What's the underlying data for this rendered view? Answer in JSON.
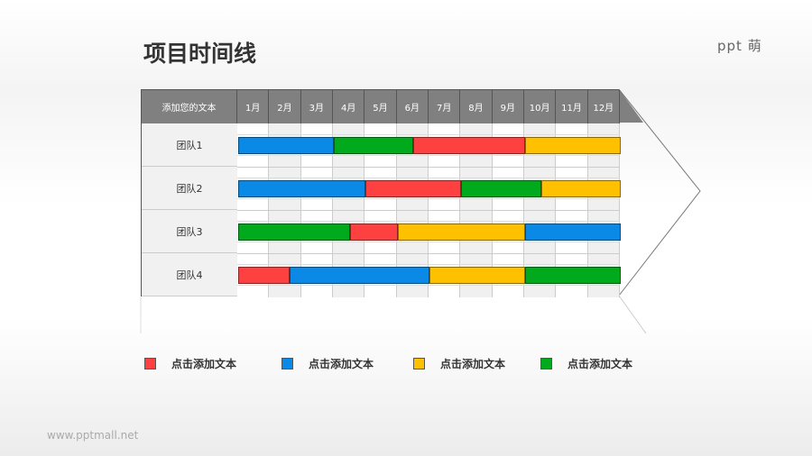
{
  "title": "项目时间线",
  "logo": "ppt 萌",
  "footer": "www.pptmall.net",
  "header_label": "添加您的文本",
  "months": [
    "1月",
    "2月",
    "3月",
    "4月",
    "5月",
    "6月",
    "7月",
    "8月",
    "9月",
    "10月",
    "11月",
    "12月"
  ],
  "colors": {
    "red": "#ff4040",
    "blue": "#0a8ae6",
    "yellow": "#ffc000",
    "green": "#00aa1c"
  },
  "teams": [
    {
      "name": "团队1",
      "segments": [
        {
          "color": "blue",
          "start": 0,
          "end": 3
        },
        {
          "color": "green",
          "start": 3,
          "end": 5.5
        },
        {
          "color": "red",
          "start": 5.5,
          "end": 9
        },
        {
          "color": "yellow",
          "start": 9,
          "end": 12
        }
      ]
    },
    {
      "name": "团队2",
      "segments": [
        {
          "color": "blue",
          "start": 0,
          "end": 4
        },
        {
          "color": "red",
          "start": 4,
          "end": 7
        },
        {
          "color": "green",
          "start": 7,
          "end": 9.5
        },
        {
          "color": "yellow",
          "start": 9.5,
          "end": 12
        }
      ]
    },
    {
      "name": "团队3",
      "segments": [
        {
          "color": "green",
          "start": 0,
          "end": 3.5
        },
        {
          "color": "red",
          "start": 3.5,
          "end": 5
        },
        {
          "color": "yellow",
          "start": 5,
          "end": 9
        },
        {
          "color": "blue",
          "start": 9,
          "end": 12
        }
      ]
    },
    {
      "name": "团队4",
      "segments": [
        {
          "color": "red",
          "start": 0,
          "end": 1.6
        },
        {
          "color": "blue",
          "start": 1.6,
          "end": 6
        },
        {
          "color": "yellow",
          "start": 6,
          "end": 9
        },
        {
          "color": "green",
          "start": 9,
          "end": 12
        }
      ]
    }
  ],
  "legend": [
    {
      "color": "red",
      "label": "点击添加文本"
    },
    {
      "color": "blue",
      "label": "点击添加文本"
    },
    {
      "color": "yellow",
      "label": "点击添加文本"
    },
    {
      "color": "green",
      "label": "点击添加文本"
    }
  ]
}
